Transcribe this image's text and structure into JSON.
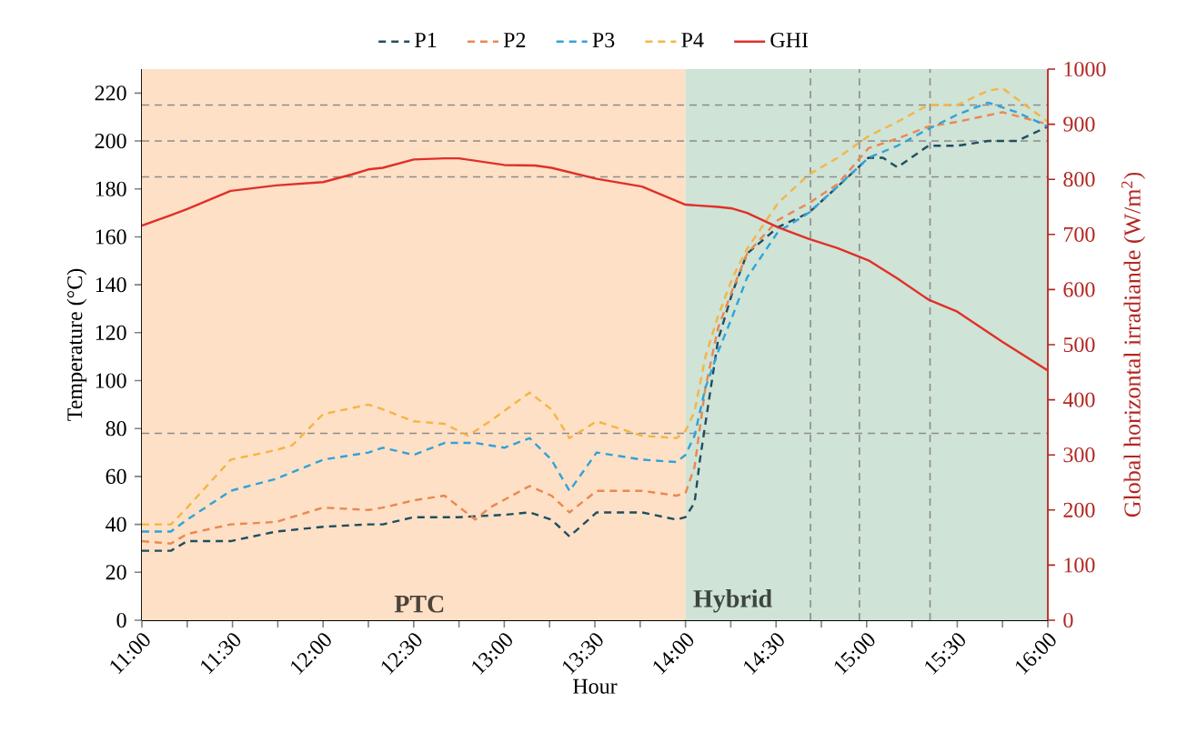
{
  "chart_data": {
    "type": "line",
    "xlabel": "Hour",
    "ylabel": "Temperature (°C)",
    "y2label": "Global horizontal irradiande (W/m$^{2}$)",
    "xlim": [
      11,
      16
    ],
    "ylim": [
      0,
      230
    ],
    "y2lim": [
      0,
      1000
    ],
    "xticks": [
      {
        "value": 11,
        "label": "11:00"
      },
      {
        "value": 11.25,
        "label": null
      },
      {
        "value": 11.5,
        "label": "11:30"
      },
      {
        "value": 11.75,
        "label": null
      },
      {
        "value": 12,
        "label": "12:00"
      },
      {
        "value": 12.25,
        "label": null
      },
      {
        "value": 12.5,
        "label": "12:30"
      },
      {
        "value": 12.75,
        "label": null
      },
      {
        "value": 13,
        "label": "13:00"
      },
      {
        "value": 13.25,
        "label": null
      },
      {
        "value": 13.5,
        "label": "13:30"
      },
      {
        "value": 13.75,
        "label": null
      },
      {
        "value": 14,
        "label": "14:00"
      },
      {
        "value": 14.25,
        "label": null
      },
      {
        "value": 14.5,
        "label": "14:30"
      },
      {
        "value": 14.75,
        "label": null
      },
      {
        "value": 15,
        "label": "15:00"
      },
      {
        "value": 15.25,
        "label": null
      },
      {
        "value": 15.5,
        "label": "15:30"
      },
      {
        "value": 15.75,
        "label": null
      },
      {
        "value": 16,
        "label": "16:00"
      }
    ],
    "yticks": [
      0,
      20,
      40,
      60,
      80,
      100,
      120,
      140,
      160,
      180,
      200,
      220
    ],
    "y2ticks": [
      0,
      100,
      200,
      300,
      400,
      500,
      600,
      700,
      800,
      900,
      1000
    ],
    "grid": false,
    "legend": "top",
    "marker": "none",
    "bands": [
      {
        "axis": "x",
        "from": 11,
        "to": 14,
        "label": "PTC",
        "color": "#fde0c6"
      },
      {
        "axis": "x",
        "from": 14,
        "to": 16,
        "label": "Hybrid",
        "color": "#cfe3d6"
      }
    ],
    "ref_lines": [
      {
        "axis": "y",
        "value": 215,
        "color": "#8c8c8c",
        "line_style": "dashed"
      },
      {
        "axis": "y",
        "value": 200,
        "color": "#8c8c8c",
        "line_style": "dashed"
      },
      {
        "axis": "y",
        "value": 185,
        "color": "#8c8c8c",
        "line_style": "dashed"
      },
      {
        "axis": "y",
        "value": 78,
        "color": "#8c8c8c",
        "line_style": "dashed"
      },
      {
        "axis": "x",
        "value": 14.69,
        "color": "#8c8c8c",
        "line_style": "dashed"
      },
      {
        "axis": "x",
        "value": 14.96,
        "color": "#8c8c8c",
        "line_style": "dashed"
      },
      {
        "axis": "x",
        "value": 15.35,
        "color": "#8c8c8c",
        "line_style": "dashed"
      }
    ],
    "series": [
      {
        "name": "P1",
        "color": "#1f4e60",
        "line_style": "dashed",
        "x": [
          11,
          11.16,
          11.25,
          11.49,
          11.74,
          12.0,
          12.25,
          12.33,
          12.5,
          12.75,
          13.0,
          13.14,
          13.26,
          13.36,
          13.51,
          13.76,
          13.95,
          14.0,
          14.05,
          14.08,
          14.18,
          14.26,
          14.34,
          14.51,
          14.68,
          14.84,
          15.01,
          15.09,
          15.17,
          15.34,
          15.5,
          15.67,
          15.83,
          16.0
        ],
        "values": [
          29,
          29,
          33,
          33,
          37,
          39,
          40,
          40,
          43,
          43,
          44,
          45,
          42,
          35,
          45,
          45,
          42,
          43,
          49,
          67,
          117,
          137,
          153,
          164,
          170,
          181,
          193,
          193,
          189,
          198,
          198,
          200,
          200,
          206
        ]
      },
      {
        "name": "P2",
        "color": "#ea8850",
        "line_style": "dashed",
        "x": [
          11,
          11.16,
          11.25,
          11.49,
          11.74,
          12.0,
          12.25,
          12.33,
          12.5,
          12.67,
          12.84,
          12.92,
          13.14,
          13.26,
          13.36,
          13.51,
          13.76,
          13.95,
          14.0,
          14.05,
          14.11,
          14.18,
          14.26,
          14.34,
          14.51,
          14.68,
          14.84,
          15.01,
          15.17,
          15.34,
          15.5,
          15.75,
          16.0
        ],
        "values": [
          33,
          32,
          36,
          40,
          41,
          47,
          46,
          47,
          50,
          52,
          42,
          47,
          56,
          52,
          45,
          54,
          54,
          52,
          53,
          64,
          97,
          122,
          138,
          153,
          167,
          174,
          182,
          197,
          201,
          206,
          208,
          212,
          207
        ]
      },
      {
        "name": "P3",
        "color": "#2fa3da",
        "line_style": "dashed",
        "x": [
          11,
          11.16,
          11.25,
          11.49,
          11.74,
          12.0,
          12.25,
          12.33,
          12.5,
          12.67,
          12.84,
          13.0,
          13.14,
          13.26,
          13.36,
          13.51,
          13.76,
          13.95,
          14.0,
          14.05,
          14.11,
          14.18,
          14.26,
          14.34,
          14.51,
          14.68,
          14.84,
          15.01,
          15.17,
          15.34,
          15.5,
          15.67,
          15.83,
          16.0
        ],
        "values": [
          37,
          37,
          42,
          54,
          59,
          67,
          70,
          72,
          69,
          74,
          74,
          72,
          76,
          67,
          54,
          70,
          67,
          66,
          69,
          77,
          97,
          112,
          127,
          143,
          162,
          170,
          181,
          193,
          198,
          205,
          211,
          216,
          212,
          206
        ]
      },
      {
        "name": "P4",
        "color": "#f5b544",
        "line_style": "dashed",
        "x": [
          11,
          11.16,
          11.25,
          11.49,
          11.74,
          11.83,
          12.0,
          12.25,
          12.33,
          12.5,
          12.67,
          12.8,
          12.92,
          13.14,
          13.26,
          13.36,
          13.51,
          13.76,
          13.95,
          14.0,
          14.05,
          14.11,
          14.18,
          14.26,
          14.34,
          14.51,
          14.68,
          14.84,
          15.01,
          15.17,
          15.34,
          15.5,
          15.67,
          15.75,
          16.0
        ],
        "values": [
          40,
          40,
          47,
          67,
          71,
          73,
          86,
          90,
          88,
          83,
          82,
          77,
          83,
          95,
          88,
          76,
          83,
          77,
          76,
          79,
          87,
          110,
          127,
          143,
          155,
          174,
          186,
          193,
          202,
          208,
          215,
          215,
          221,
          222,
          208
        ]
      },
      {
        "name": "GHI",
        "color": "#e0302a",
        "line_style": "solid",
        "axis": "y2",
        "x": [
          11,
          11.16,
          11.25,
          11.49,
          11.74,
          12.0,
          12.16,
          12.25,
          12.33,
          12.5,
          12.67,
          12.75,
          13.0,
          13.17,
          13.26,
          13.51,
          13.76,
          14.0,
          14.18,
          14.26,
          14.34,
          14.51,
          14.68,
          14.84,
          15.01,
          15.17,
          15.34,
          15.5,
          15.75,
          16.0
        ],
        "values": [
          716,
          735,
          746,
          779,
          789,
          795,
          809,
          818,
          821,
          836,
          838,
          838,
          826,
          825,
          821,
          801,
          787,
          754,
          750,
          747,
          739,
          713,
          692,
          675,
          653,
          620,
          582,
          560,
          505,
          453
        ]
      }
    ]
  }
}
